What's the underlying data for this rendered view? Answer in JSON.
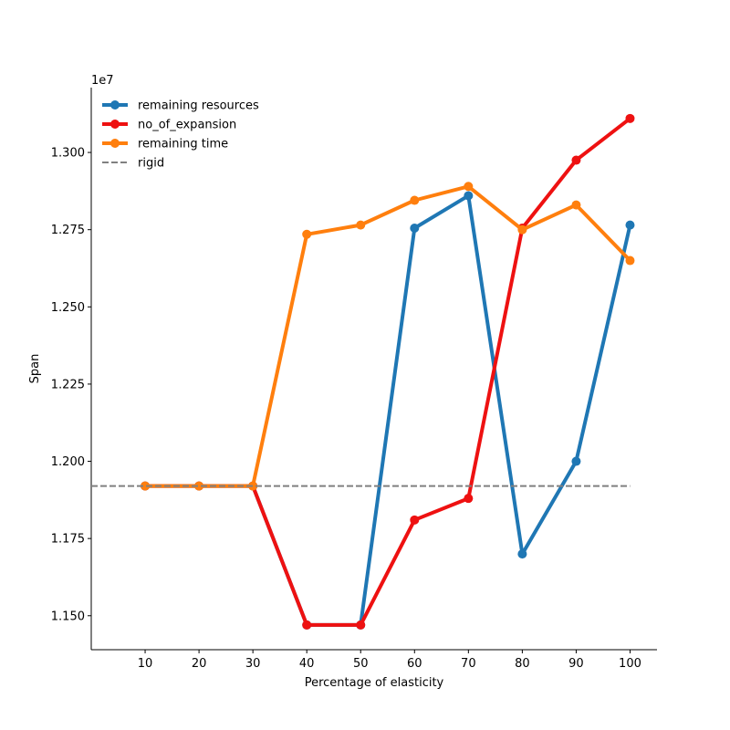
{
  "chart_data": {
    "type": "line",
    "xlabel": "Percentage of elasticity",
    "ylabel": "Span",
    "y_offset_label": "1e7",
    "x": [
      10,
      20,
      30,
      40,
      50,
      60,
      70,
      80,
      90,
      100
    ],
    "xlim": [
      0,
      105
    ],
    "ylim": [
      1.139,
      1.321
    ],
    "x_ticks": [
      10,
      20,
      30,
      40,
      50,
      60,
      70,
      80,
      90,
      100
    ],
    "y_ticks": [
      1.15,
      1.175,
      1.2,
      1.225,
      1.25,
      1.275,
      1.3
    ],
    "y_tick_labels": [
      "1.150",
      "1.175",
      "1.200",
      "1.225",
      "1.250",
      "1.275",
      "1.300"
    ],
    "grid": false,
    "legend_position": "top-left",
    "series": [
      {
        "name": "remaining resources",
        "color": "#1f77b4",
        "style": "solid-markers",
        "values": [
          1.192,
          1.192,
          1.192,
          1.147,
          1.147,
          1.2755,
          1.286,
          1.17,
          1.2,
          1.2765
        ]
      },
      {
        "name": "no_of_expansion",
        "color": "#ee1111",
        "style": "solid-markers",
        "values": [
          1.192,
          1.192,
          1.192,
          1.147,
          1.147,
          1.181,
          1.188,
          1.2755,
          1.2975,
          1.311
        ]
      },
      {
        "name": "remaining time",
        "color": "#ff7f0e",
        "style": "solid-markers",
        "values": [
          1.192,
          1.192,
          1.192,
          1.2735,
          1.2765,
          1.2845,
          1.289,
          1.275,
          1.283,
          1.265
        ]
      },
      {
        "name": "rigid",
        "color": "#808080",
        "style": "dashed",
        "x": [
          0,
          100
        ],
        "values": [
          1.192,
          1.192
        ]
      }
    ]
  }
}
